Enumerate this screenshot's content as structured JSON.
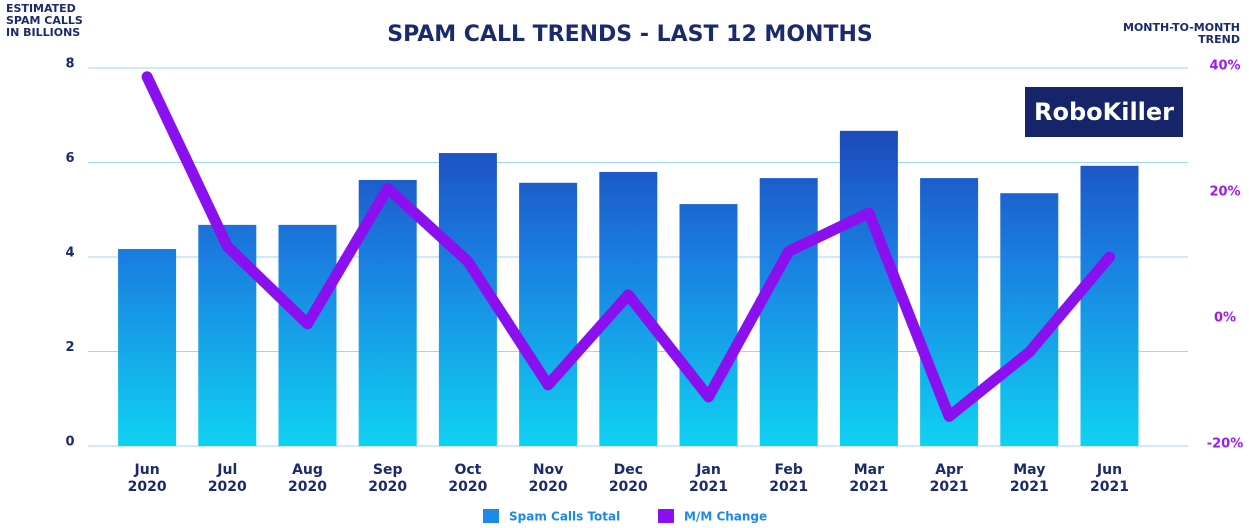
{
  "chart_data": {
    "type": "bar",
    "title": "SPAM CALL TRENDS - LAST 12 MONTHS",
    "y_label": [
      "ESTIMATED",
      "SPAM CALLS",
      "IN BILLIONS"
    ],
    "y2_label": [
      "MONTH-TO-MONTH",
      "TREND"
    ],
    "logo": "RoboKiller",
    "categories": [
      "Jun 2020",
      "Jul 2020",
      "Aug 2020",
      "Sep 2020",
      "Oct 2020",
      "Nov 2020",
      "Dec 2020",
      "Jan 2021",
      "Feb 2021",
      "Mar 2021",
      "Apr 2021",
      "May 2021",
      "Jun 2021"
    ],
    "series": [
      {
        "name": "Spam Calls Total",
        "type": "bar",
        "color": "#1e88e5",
        "values": [
          4.17,
          4.68,
          4.68,
          5.63,
          6.2,
          5.57,
          5.8,
          5.12,
          5.67,
          6.67,
          5.67,
          5.35,
          5.93
        ]
      },
      {
        "name": "M/M Change",
        "type": "line",
        "axis": "y2",
        "color": "#8a10f0",
        "values": [
          38.6,
          11.7,
          -0.6,
          20.9,
          9.3,
          -10.3,
          4.0,
          -12.2,
          10.9,
          17.0,
          -15.3,
          -5.1,
          10.0
        ]
      }
    ],
    "ylim": [
      0,
      8
    ],
    "yticks": [
      0,
      2,
      4,
      6,
      8
    ],
    "y2lim": [
      -20,
      40
    ],
    "y2ticks": [
      {
        "value": -20,
        "label": "-20%"
      },
      {
        "value": 0,
        "label": "0%"
      },
      {
        "value": 20,
        "label": "20%"
      },
      {
        "value": 40,
        "label": "40%"
      }
    ],
    "grid": true,
    "legend": "bottom"
  }
}
